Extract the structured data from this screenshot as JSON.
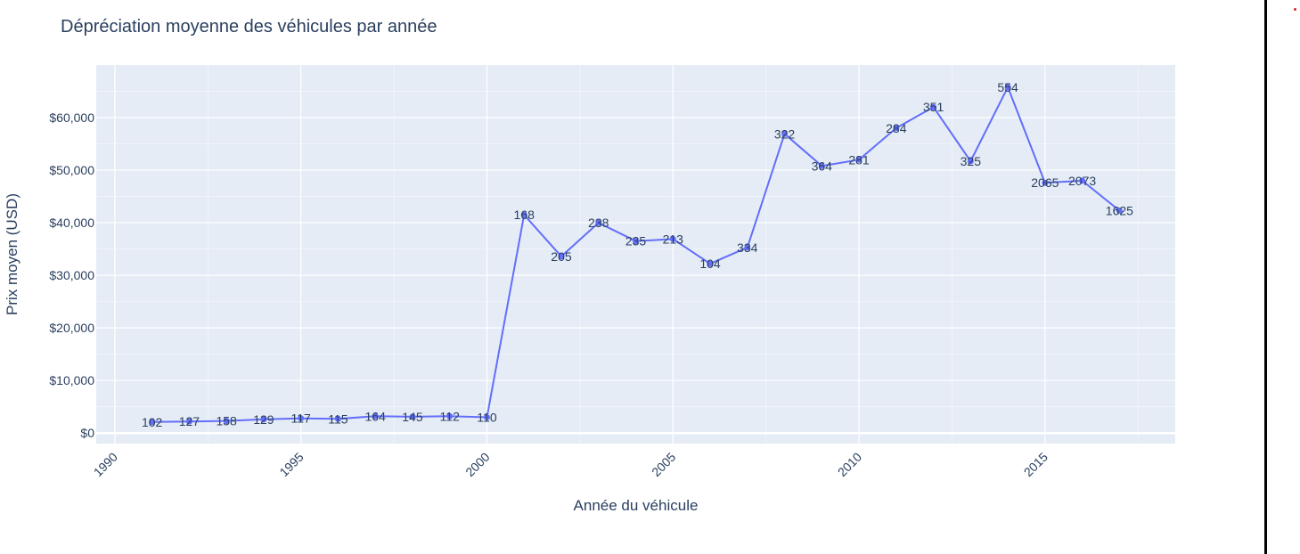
{
  "chart_data": {
    "type": "line",
    "title": "Dépréciation moyenne des véhicules par année",
    "xlabel": "Année du véhicule",
    "ylabel": "Prix moyen (USD)",
    "x_ticks": [
      1990,
      1995,
      2000,
      2005,
      2010,
      2015
    ],
    "y_ticks": [
      "$0",
      "$10,000",
      "$20,000",
      "$30,000",
      "$40,000",
      "$50,000",
      "$60,000"
    ],
    "y_tick_values": [
      0,
      10000,
      20000,
      30000,
      40000,
      50000,
      60000
    ],
    "xlim": [
      1989.5,
      2018.5
    ],
    "ylim": [
      -2000,
      70000
    ],
    "grid": true,
    "line_color": "#636efa",
    "plot_background": "#e5ecf6",
    "grid_color": "#ffffff",
    "x": [
      1991,
      1992,
      1993,
      1994,
      1995,
      1996,
      1997,
      1998,
      1999,
      2000,
      2001,
      2002,
      2003,
      2004,
      2005,
      2006,
      2007,
      2008,
      2009,
      2010,
      2011,
      2012,
      2013,
      2014,
      2015,
      2016,
      2017
    ],
    "values": [
      2100,
      2200,
      2300,
      2600,
      2800,
      2700,
      3200,
      3100,
      3200,
      3000,
      41500,
      33600,
      40000,
      36500,
      36900,
      32200,
      35300,
      56900,
      50800,
      52000,
      58000,
      62000,
      51700,
      65800,
      47600,
      48000,
      42300
    ],
    "labels": [
      "102",
      "127",
      "158",
      "129",
      "117",
      "115",
      "164",
      "145",
      "112",
      "110",
      "168",
      "205",
      "238",
      "235",
      "213",
      "104",
      "334",
      "322",
      "364",
      "281",
      "284",
      "351",
      "325",
      "554",
      "2065",
      "2073",
      "1625"
    ]
  }
}
